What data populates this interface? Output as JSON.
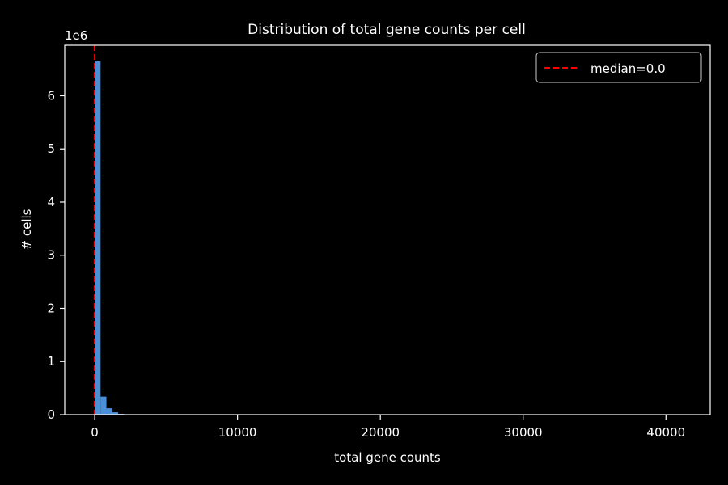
{
  "chart_data": {
    "type": "bar",
    "title": "Distribution of total gene counts per cell",
    "xlabel": "total gene counts",
    "ylabel": "# cells",
    "y_offset_label": "1e6",
    "y_scale": 1000000,
    "xlim": [
      -2100,
      43100
    ],
    "ylim": [
      0,
      6950000
    ],
    "x_ticks": [
      0,
      10000,
      20000,
      30000,
      40000
    ],
    "y_ticks": [
      0,
      1,
      2,
      3,
      4,
      5,
      6
    ],
    "bin_width": 410,
    "bins": [
      {
        "x0": 0,
        "count": 6650000
      },
      {
        "x0": 410,
        "count": 340000
      },
      {
        "x0": 820,
        "count": 120000
      },
      {
        "x0": 1230,
        "count": 45000
      },
      {
        "x0": 1640,
        "count": 16000
      },
      {
        "x0": 2050,
        "count": 6000
      }
    ],
    "bar_color": "#4a90d9",
    "median": 0.0,
    "median_label": "median=0.0",
    "median_color": "#ff0000",
    "legend_position": "top-right",
    "grid": false
  }
}
